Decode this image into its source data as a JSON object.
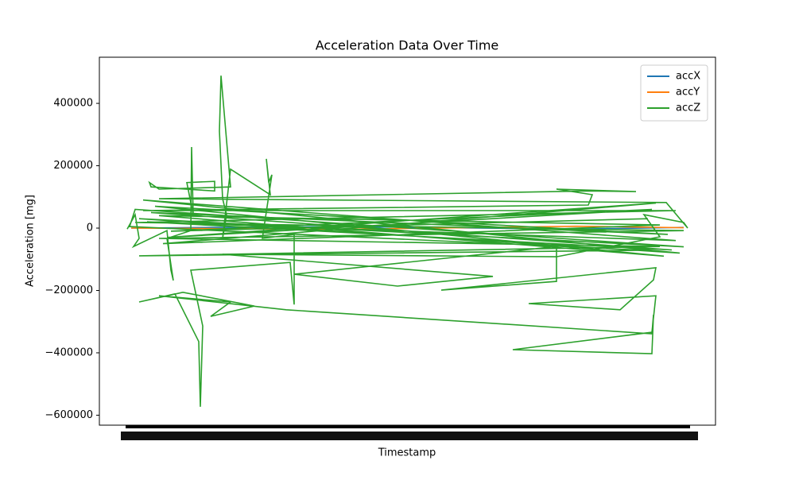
{
  "chart_data": {
    "type": "line",
    "title": "Acceleration Data Over Time",
    "xlabel": "Timestamp",
    "ylabel": "Acceleration [mg]",
    "xlim": [
      0,
      775
    ],
    "ylim": [
      -632000,
      548000
    ],
    "yticks": [
      {
        "value": -600000,
        "label": "−600000"
      },
      {
        "value": -400000,
        "label": "−400000"
      },
      {
        "value": -200000,
        "label": "−200000"
      },
      0,
      200000,
      400000
    ],
    "legend": "upper right",
    "series": [
      {
        "name": "accX",
        "color": "#1f77b4",
        "x": [
          40,
          300,
          600,
          735
        ],
        "values": [
          0,
          5000,
          -3000,
          2000
        ]
      },
      {
        "name": "accY",
        "color": "#ff7f0e",
        "x": [
          40,
          300,
          600,
          735
        ],
        "values": [
          0,
          -4000,
          6000,
          1000
        ]
      },
      {
        "name": "accZ",
        "color": "#2ca02c",
        "x": [
          35,
          45,
          50,
          43,
          85,
          90,
          93,
          85,
          115,
          116,
          118,
          110,
          145,
          145,
          65,
          63,
          75,
          165,
          153,
          151,
          155,
          160,
          155,
          165,
          215,
          210,
          213,
          217,
          205,
          245,
          245,
          240,
          115,
          130,
          127,
          125,
          95,
          50,
          105,
          195,
          140,
          165,
          75,
          235,
          695,
          697,
          695,
          520,
          695,
          700,
          540,
          655,
          697,
          700,
          430,
          575,
          575,
          245,
          375,
          495,
          155,
          575,
          705,
          685,
          735,
          740,
          713,
          75,
          615,
          675,
          575,
          620,
          615,
          55,
          725,
          45,
          735,
          75,
          705,
          50,
          685,
          38,
          45,
          735,
          50,
          730,
          55,
          725,
          60,
          720,
          65,
          715,
          70,
          710,
          75,
          705,
          80,
          700,
          85,
          695,
          90,
          690
        ],
        "values": [
          -3000,
          43000,
          -33000,
          -59000,
          -8000,
          -135000,
          -168000,
          -33000,
          -8000,
          260000,
          43000,
          146000,
          150000,
          119000,
          132000,
          146000,
          125000,
          132000,
          489000,
          311000,
          94000,
          43000,
          -33000,
          189000,
          107000,
          222000,
          146000,
          171000,
          -33000,
          -20000,
          -245000,
          -110000,
          -135000,
          -314000,
          -573000,
          -364000,
          -211000,
          -237000,
          -206000,
          -250000,
          -283000,
          -237000,
          -217000,
          -262000,
          -339000,
          -278000,
          -403000,
          -390000,
          -334000,
          -217000,
          -242000,
          -262000,
          -166000,
          -127000,
          -199000,
          -171000,
          -59000,
          -148000,
          -186000,
          -155000,
          -84000,
          -92000,
          -28000,
          43000,
          18000,
          0,
          82000,
          94000,
          119000,
          117000,
          125000,
          107000,
          74000,
          56000,
          56000,
          18000,
          -8000,
          -33000,
          -59000,
          -89000,
          -71000,
          5000,
          60000,
          -60000,
          30000,
          -80000,
          90000,
          -40000,
          20000,
          -70000,
          50000,
          -20000,
          70000,
          -90000,
          40000,
          10000,
          -50000,
          80000,
          -30000,
          60000,
          -10000,
          30000
        ]
      }
    ]
  }
}
